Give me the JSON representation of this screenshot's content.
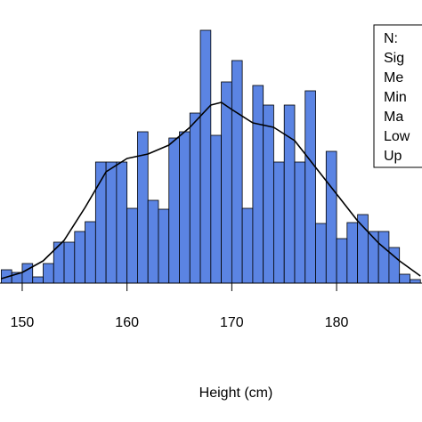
{
  "chart_data": {
    "type": "histogram",
    "x_label": "Height (cm)",
    "color": "#5b84e3",
    "line_color": "#000000",
    "bins": [
      148,
      149,
      150,
      151,
      152,
      153,
      154,
      155,
      156,
      157,
      158,
      159,
      160,
      161,
      162,
      163,
      164,
      165,
      166,
      167,
      168,
      169,
      170,
      171,
      172,
      173,
      174,
      175,
      176,
      177,
      178,
      179,
      180,
      181,
      182,
      183,
      184,
      185,
      186,
      187,
      188
    ],
    "values": [
      15,
      12,
      22,
      7,
      22,
      46,
      46,
      58,
      69,
      136,
      136,
      136,
      84,
      170,
      93,
      83,
      163,
      170,
      191,
      284,
      166,
      226,
      250,
      84,
      222,
      200,
      136,
      200,
      136,
      216,
      67,
      148,
      50,
      68,
      77,
      58,
      58,
      40,
      10,
      4
    ],
    "density": {
      "x": [
        148,
        150,
        152,
        154,
        156,
        158,
        160,
        162,
        164,
        166,
        168,
        169,
        170,
        172,
        174,
        176,
        178,
        180,
        182,
        184,
        186,
        188
      ],
      "values": [
        5,
        12,
        25,
        48,
        85,
        125,
        140,
        145,
        155,
        175,
        200,
        203,
        195,
        180,
        175,
        160,
        130,
        100,
        70,
        45,
        25,
        8
      ]
    },
    "xlim": [
      147.88,
      188.15
    ],
    "ylim": [
      0,
      318
    ],
    "xticks": [
      150,
      160,
      170,
      180
    ],
    "legend_text": [
      "N:",
      "Sig",
      "Me",
      "Min",
      "Ma",
      "Low",
      "Up"
    ]
  }
}
